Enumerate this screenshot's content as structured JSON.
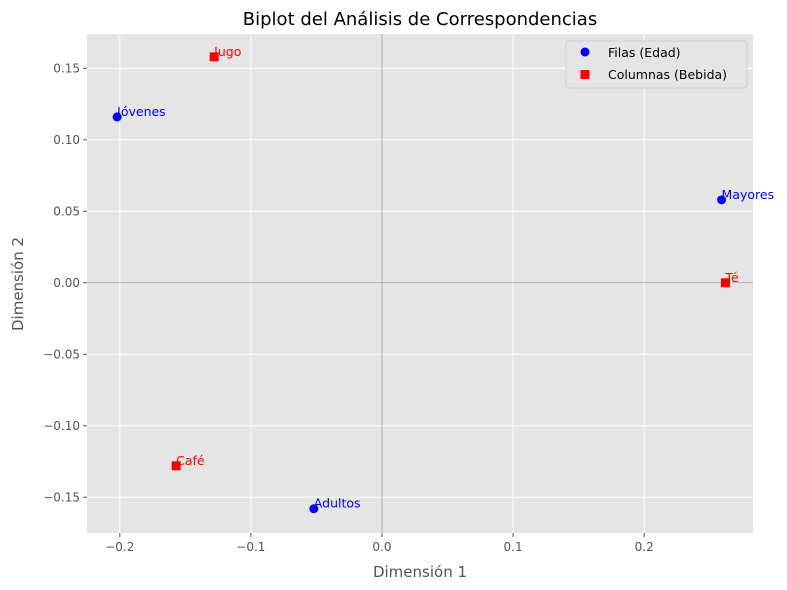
{
  "chart_data": {
    "type": "scatter",
    "title": "Biplot del Análisis de Correspondencias",
    "xlabel": "Dimensión 1",
    "ylabel": "Dimensión 2",
    "xlim": [
      -0.225,
      0.283
    ],
    "ylim": [
      -0.175,
      0.174
    ],
    "xticks": [
      -0.2,
      -0.1,
      0.0,
      0.1,
      0.2
    ],
    "xtick_labels": [
      "−0.2",
      "−0.1",
      "0.0",
      "0.1",
      "0.2"
    ],
    "yticks": [
      -0.15,
      -0.1,
      -0.05,
      0.0,
      0.05,
      0.1,
      0.15
    ],
    "ytick_labels": [
      "−0.15",
      "−0.10",
      "−0.05",
      "0.00",
      "0.05",
      "0.10",
      "0.15"
    ],
    "grid": true,
    "background": "#e5e5e5",
    "reference_lines": {
      "x": 0,
      "y": 0,
      "color": "#999999"
    },
    "legend_position": "upper right",
    "series": [
      {
        "name": "Filas (Edad)",
        "marker": "circle",
        "color": "#0000ff",
        "points": [
          {
            "label": "Jóvenes",
            "x": -0.202,
            "y": 0.116
          },
          {
            "label": "Adultos",
            "x": -0.052,
            "y": -0.158
          },
          {
            "label": "Mayores",
            "x": 0.259,
            "y": 0.058
          }
        ]
      },
      {
        "name": "Columnas (Bebida)",
        "marker": "square",
        "color": "#ff0000",
        "points": [
          {
            "label": "Jugo",
            "x": -0.128,
            "y": 0.158
          },
          {
            "label": "Café",
            "x": -0.157,
            "y": -0.128
          },
          {
            "label": "Té",
            "x": 0.262,
            "y": 0.0
          }
        ]
      }
    ]
  }
}
